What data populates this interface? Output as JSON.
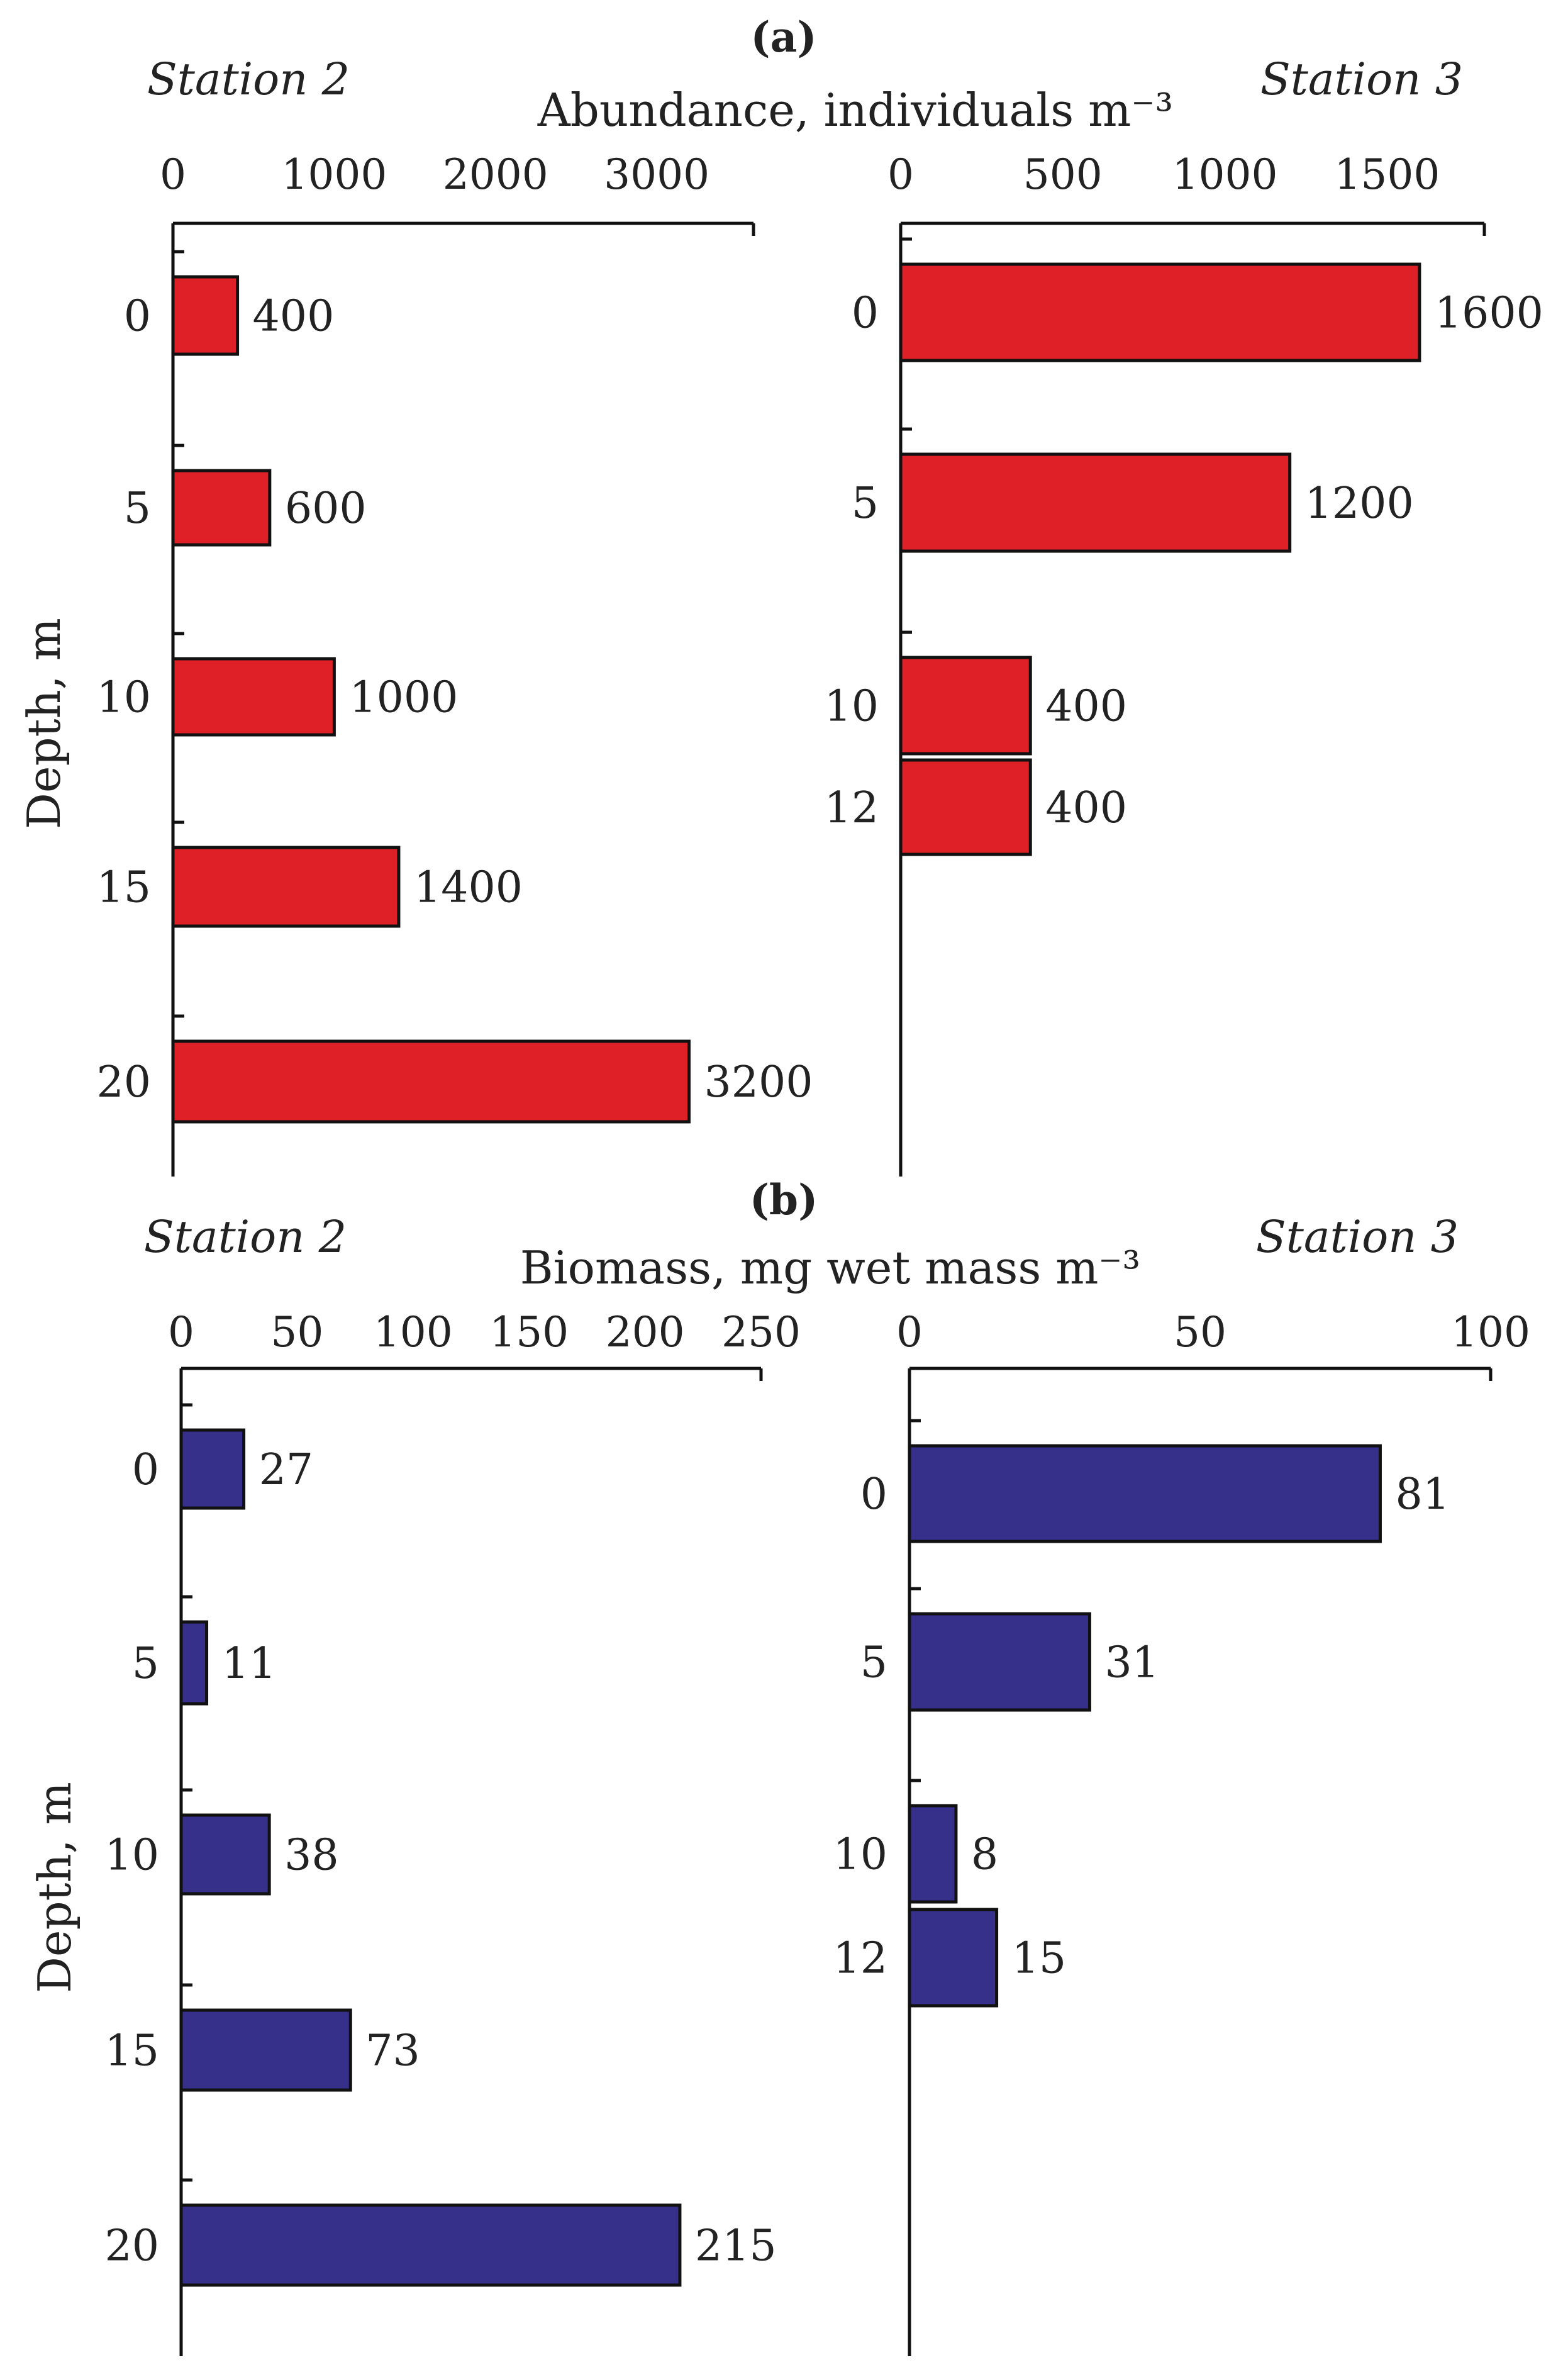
{
  "colors": {
    "abundance_bar": "#e02027",
    "biomass_bar": "#36308a",
    "axis": "#111111"
  },
  "y_axis_label": "Depth, m",
  "chart_data": [
    {
      "id": "a-station2",
      "type": "bar",
      "orientation": "horizontal",
      "panel_label": "(a)",
      "station": "Station 2",
      "xlabel": "Abundance, individuals m⁻³",
      "xlim": [
        0,
        3600
      ],
      "xticks": [
        0,
        1000,
        2000,
        3000
      ],
      "categories": [
        "0",
        "5",
        "10",
        "15",
        "20"
      ],
      "values": [
        400,
        600,
        1000,
        1400,
        3200
      ],
      "labels": [
        "400",
        "600",
        "1000",
        "1400",
        "3200"
      ]
    },
    {
      "id": "a-station3",
      "type": "bar",
      "orientation": "horizontal",
      "panel_label": "(a)",
      "station": "Station 3",
      "xlabel": "Abundance, individuals m⁻³",
      "xlim": [
        0,
        1800
      ],
      "xticks": [
        0,
        500,
        1000,
        1500
      ],
      "categories": [
        "0",
        "5",
        "10",
        "12"
      ],
      "values": [
        1600,
        1200,
        400,
        400
      ],
      "labels": [
        "1600",
        "1200",
        "400",
        "400"
      ]
    },
    {
      "id": "b-station2",
      "type": "bar",
      "orientation": "horizontal",
      "panel_label": "(b)",
      "station": "Station 2",
      "xlabel": "Biomass, mg wet mass m⁻³",
      "xlim": [
        0,
        250
      ],
      "xticks": [
        0,
        50,
        100,
        150,
        200,
        250
      ],
      "categories": [
        "0",
        "5",
        "10",
        "15",
        "20"
      ],
      "values": [
        27,
        11,
        38,
        73,
        215
      ],
      "labels": [
        "27",
        "11",
        "38",
        "73",
        "215"
      ]
    },
    {
      "id": "b-station3",
      "type": "bar",
      "orientation": "horizontal",
      "panel_label": "(b)",
      "station": "Station 3",
      "xlabel": "Biomass, mg wet mass m⁻³",
      "xlim": [
        0,
        100
      ],
      "xticks": [
        0,
        50,
        100
      ],
      "categories": [
        "0",
        "5",
        "10",
        "12"
      ],
      "values": [
        81,
        31,
        8,
        15
      ],
      "labels": [
        "81",
        "31",
        "8",
        "15"
      ]
    }
  ]
}
